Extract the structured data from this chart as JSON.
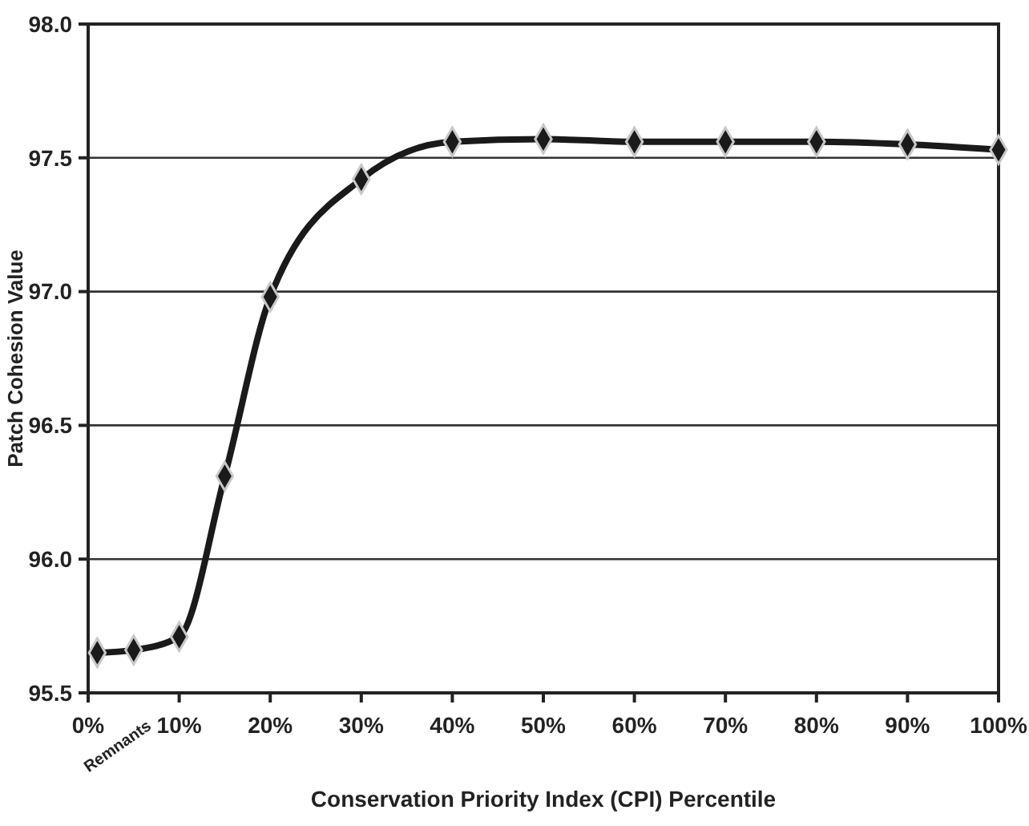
{
  "chart_data": {
    "type": "line",
    "xlabel": "Conservation Priority Index (CPI) Percentile",
    "ylabel": "Patch Cohesion Value",
    "x": [
      1,
      5,
      10,
      15,
      20,
      30,
      40,
      50,
      60,
      70,
      80,
      90,
      100
    ],
    "series": [
      {
        "color": "#1a1a1a",
        "values": [
          95.65,
          95.66,
          95.71,
          96.31,
          96.98,
          97.42,
          97.56,
          97.57,
          97.56,
          97.56,
          97.56,
          97.55,
          97.53
        ]
      }
    ],
    "xlim": [
      0,
      100
    ],
    "xticks": [
      {
        "value": 0,
        "label": "0%"
      },
      {
        "value": 10,
        "label": "10%"
      },
      {
        "value": 20,
        "label": "20%"
      },
      {
        "value": 30,
        "label": "30%"
      },
      {
        "value": 40,
        "label": "40%"
      },
      {
        "value": 50,
        "label": "50%"
      },
      {
        "value": 60,
        "label": "60%"
      },
      {
        "value": 70,
        "label": "70%"
      },
      {
        "value": 80,
        "label": "80%"
      },
      {
        "value": 90,
        "label": "90%"
      },
      {
        "value": 100,
        "label": "100%"
      }
    ],
    "ylim": [
      95.5,
      98
    ],
    "yticks": [
      {
        "value": 95.5,
        "label": "95.5"
      },
      {
        "value": 96,
        "label": "96.0"
      },
      {
        "value": 96.5,
        "label": "96.5"
      },
      {
        "value": 97,
        "label": "97.0"
      },
      {
        "value": 97.5,
        "label": "97.5"
      },
      {
        "value": 98,
        "label": "98.0"
      }
    ],
    "grid": "y",
    "marker": "diamond",
    "line_style": "solid",
    "annotations": [
      "Remnants"
    ]
  }
}
